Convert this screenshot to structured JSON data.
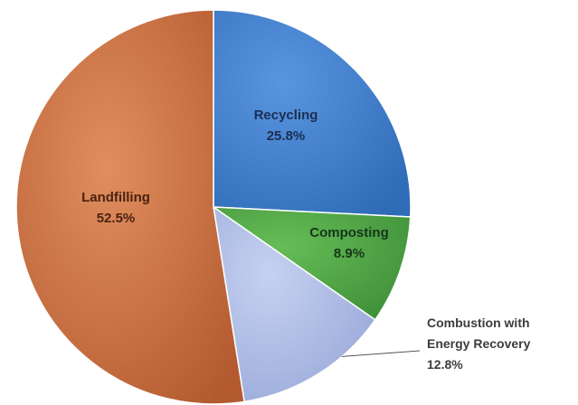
{
  "chart_data": {
    "type": "pie",
    "slices": [
      {
        "label": "Recycling",
        "value": 25.8,
        "value_label": "25.8%",
        "color": "#3f7fd0",
        "label_color": "#1a2f52"
      },
      {
        "label": "Composting",
        "value": 8.9,
        "value_label": "8.9%",
        "color": "#55a84a",
        "label_color": "#16361a"
      },
      {
        "label": "Combustion with Energy Recovery",
        "label_lines": [
          "Combustion with",
          "Energy Recovery"
        ],
        "value": 12.8,
        "value_label": "12.8%",
        "color": "#b4c2ea",
        "label_color": "#3c3c3c",
        "label_position": "outside-right"
      },
      {
        "label": "Landfilling",
        "value": 52.5,
        "value_label": "52.5%",
        "color": "#d2784a",
        "label_color": "#4a2310"
      }
    ],
    "start": "12 o'clock",
    "direction": "clockwise",
    "legend": "none"
  }
}
